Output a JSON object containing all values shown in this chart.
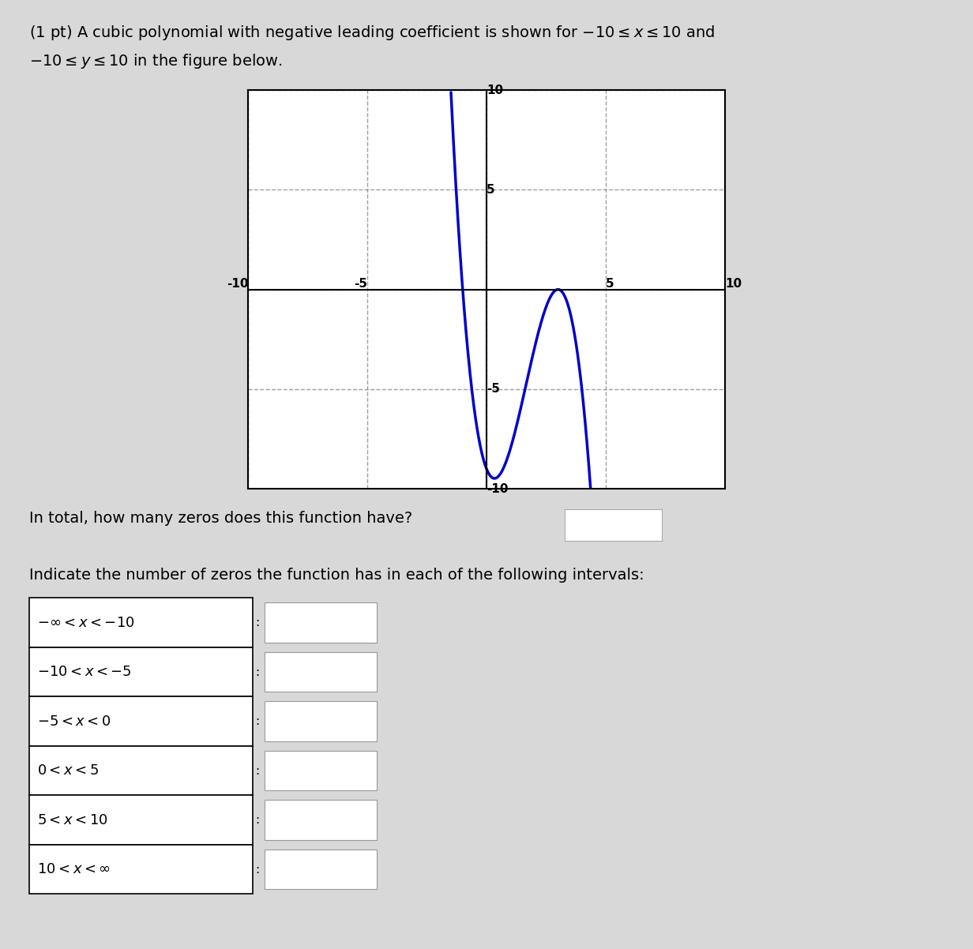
{
  "xlim": [
    -10,
    10
  ],
  "ylim": [
    -10,
    10
  ],
  "xticks": [
    -10,
    -5,
    0,
    5,
    10
  ],
  "yticks": [
    -10,
    -5,
    0,
    5,
    10
  ],
  "grid_color": "#888888",
  "curve_color": "#0000cc",
  "curve_linewidth": 2.5,
  "poly_coeffs": [
    -1.0,
    5.0,
    -3.0,
    -9.0
  ],
  "background_color": "#d8d8d8",
  "plot_bg_color": "#ffffff",
  "title_line1": "(1 pt) A cubic polynomial with negative leading coefficient is shown for $-10 \\leq x \\leq 10$ and",
  "title_line2": "$-10 \\leq y \\leq 10$ in the figure below.",
  "question_text": "In total, how many zeros does this function have?",
  "indicate_text": "Indicate the number of zeros the function has in each of the following intervals:",
  "table_rows": [
    "$-\\infty < x < -10$:",
    "$-10 < x < -5$ :",
    "$-5 < x < 0$",
    "$0 < x < 5$",
    "$5 < x < 10$",
    "$10 < x < \\infty$"
  ]
}
